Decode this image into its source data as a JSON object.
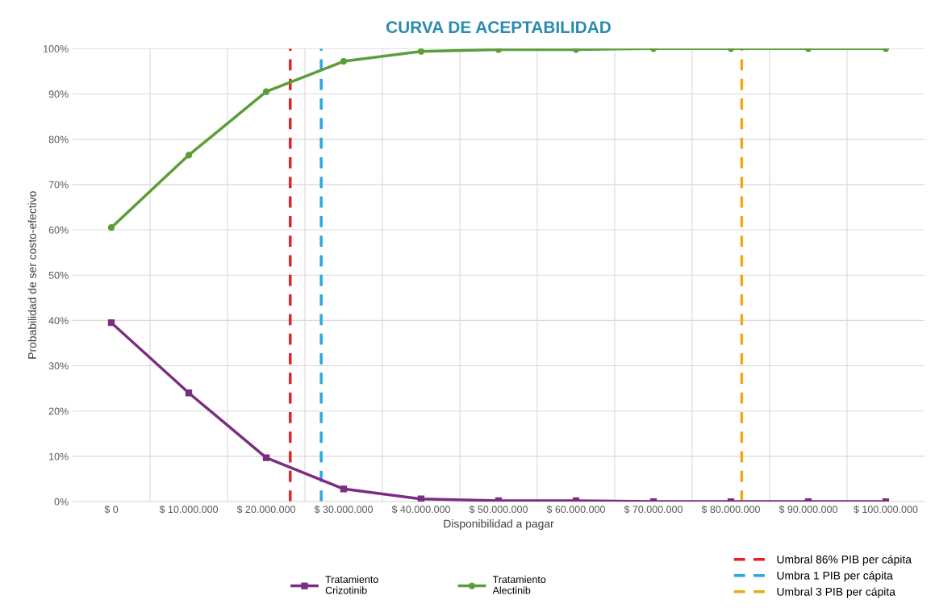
{
  "chart_data": {
    "type": "line",
    "title": "CURVA DE ACEPTABILIDAD",
    "xlabel": "Disponibilidad a pagar",
    "ylabel": "Probabilidad de ser costo-efectivo",
    "x": [
      0,
      10000000,
      20000000,
      30000000,
      40000000,
      50000000,
      60000000,
      70000000,
      80000000,
      90000000,
      100000000
    ],
    "series": [
      {
        "name": "Tratamiento\nCrizotinib",
        "color": "#7b2d82",
        "marker": "square",
        "values": [
          39.5,
          24,
          9.7,
          2.8,
          0.6,
          0.2,
          0.2,
          0,
          0,
          0,
          0
        ]
      },
      {
        "name": "Tratamiento\nAlectinib",
        "color": "#5a9e3a",
        "marker": "circle",
        "values": [
          60.5,
          76.5,
          90.5,
          97.2,
          99.4,
          99.8,
          99.8,
          100,
          100,
          100,
          100
        ]
      }
    ],
    "xlim": [
      -5000000,
      105000000
    ],
    "xticks": [
      {
        "value": 0,
        "label": "$ 0"
      },
      {
        "value": 10000000,
        "label": "$ 10.000.000"
      },
      {
        "value": 20000000,
        "label": "$ 20.000.000"
      },
      {
        "value": 30000000,
        "label": "$ 30.000.000"
      },
      {
        "value": 40000000,
        "label": "$ 40.000.000"
      },
      {
        "value": 50000000,
        "label": "$ 50.000.000"
      },
      {
        "value": 60000000,
        "label": "$ 60.000.000"
      },
      {
        "value": 70000000,
        "label": "$ 70.000.000"
      },
      {
        "value": 80000000,
        "label": "$ 80.000.000"
      },
      {
        "value": 90000000,
        "label": "$ 90.000.000"
      },
      {
        "value": 100000000,
        "label": "$ 100.000.000"
      },
      {
        "value": 5000000,
        "label": null
      },
      {
        "value": 15000000,
        "label": null
      },
      {
        "value": 25000000,
        "label": null
      },
      {
        "value": 35000000,
        "label": null
      },
      {
        "value": 45000000,
        "label": null
      },
      {
        "value": 55000000,
        "label": null
      },
      {
        "value": 65000000,
        "label": null
      },
      {
        "value": 75000000,
        "label": null
      },
      {
        "value": 85000000,
        "label": null
      },
      {
        "value": 95000000,
        "label": null
      }
    ],
    "ylim": [
      0,
      100
    ],
    "yticks": [
      {
        "value": 0,
        "label": "0%"
      },
      {
        "value": 10,
        "label": "10%"
      },
      {
        "value": 20,
        "label": "20%"
      },
      {
        "value": 30,
        "label": "30%"
      },
      {
        "value": 40,
        "label": "40%"
      },
      {
        "value": 50,
        "label": "50%"
      },
      {
        "value": 60,
        "label": "60%"
      },
      {
        "value": 70,
        "label": "70%"
      },
      {
        "value": 80,
        "label": "80%"
      },
      {
        "value": 90,
        "label": "90%"
      },
      {
        "value": 100,
        "label": "100%"
      }
    ],
    "ref_lines": [
      {
        "axis": "x",
        "value": 23100000,
        "label": "Umbral 86% PIB per cápita",
        "color": "#e8202a",
        "line_style": "dashed"
      },
      {
        "axis": "x",
        "value": 27100000,
        "label": "Umbra 1 PIB per cápita",
        "color": "#2aa8e0",
        "line_style": "dashed"
      },
      {
        "axis": "x",
        "value": 81400000,
        "label": "Umbral 3 PIB per cápita",
        "color": "#f0a818",
        "line_style": "dashed"
      }
    ],
    "grid": true,
    "legend": "bottom",
    "line_style": "solid"
  }
}
